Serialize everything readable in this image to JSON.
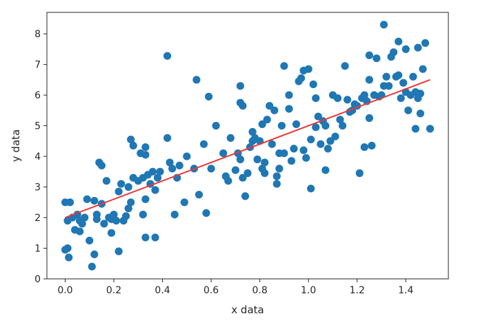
{
  "chart_data": {
    "type": "scatter",
    "title": "",
    "xlabel": "x data",
    "ylabel": "y data",
    "xlim": [
      -0.075,
      1.575
    ],
    "ylim": [
      0,
      8.7
    ],
    "xticks": [
      0.0,
      0.2,
      0.4,
      0.6,
      0.8,
      1.0,
      1.2,
      1.4
    ],
    "xtick_labels": [
      "0.0",
      "0.2",
      "0.4",
      "0.6",
      "0.8",
      "1.0",
      "1.2",
      "1.4"
    ],
    "yticks": [
      0,
      1,
      2,
      3,
      4,
      5,
      6,
      7,
      8
    ],
    "ytick_labels": [
      "0",
      "1",
      "2",
      "3",
      "4",
      "5",
      "6",
      "7",
      "8"
    ],
    "grid": false,
    "legend": "none",
    "colors": {
      "points": "#1f77b4",
      "fit_line": "#e8393a",
      "axes": "#262626"
    },
    "points": [
      [
        0.0,
        2.5
      ],
      [
        0.01,
        1.9
      ],
      [
        0.01,
        1.0
      ],
      [
        0.0,
        0.95
      ],
      [
        0.015,
        0.7
      ],
      [
        0.02,
        2.5
      ],
      [
        0.03,
        2.0
      ],
      [
        0.04,
        1.6
      ],
      [
        0.05,
        2.1
      ],
      [
        0.06,
        1.9
      ],
      [
        0.06,
        1.55
      ],
      [
        0.07,
        1.8
      ],
      [
        0.08,
        2.0
      ],
      [
        0.09,
        2.6
      ],
      [
        0.1,
        1.25
      ],
      [
        0.11,
        0.4
      ],
      [
        0.12,
        0.8
      ],
      [
        0.12,
        2.55
      ],
      [
        0.13,
        2.1
      ],
      [
        0.13,
        1.95
      ],
      [
        0.14,
        3.8
      ],
      [
        0.15,
        3.7
      ],
      [
        0.15,
        2.45
      ],
      [
        0.16,
        1.8
      ],
      [
        0.17,
        3.2
      ],
      [
        0.18,
        2.0
      ],
      [
        0.19,
        1.95
      ],
      [
        0.19,
        1.5
      ],
      [
        0.2,
        2.1
      ],
      [
        0.21,
        1.9
      ],
      [
        0.22,
        2.85
      ],
      [
        0.22,
        0.9
      ],
      [
        0.23,
        3.1
      ],
      [
        0.24,
        1.9
      ],
      [
        0.25,
        2.05
      ],
      [
        0.26,
        3.0
      ],
      [
        0.27,
        2.5
      ],
      [
        0.26,
        2.3
      ],
      [
        0.27,
        4.55
      ],
      [
        0.28,
        4.35
      ],
      [
        0.28,
        3.3
      ],
      [
        0.3,
        3.2
      ],
      [
        0.31,
        4.1
      ],
      [
        0.32,
        3.3
      ],
      [
        0.33,
        4.3
      ],
      [
        0.33,
        4.05
      ],
      [
        0.33,
        2.6
      ],
      [
        0.32,
        2.1
      ],
      [
        0.33,
        1.35
      ],
      [
        0.34,
        3.4
      ],
      [
        0.35,
        3.1
      ],
      [
        0.36,
        3.5
      ],
      [
        0.37,
        2.9
      ],
      [
        0.37,
        1.35
      ],
      [
        0.38,
        3.3
      ],
      [
        0.39,
        3.5
      ],
      [
        0.42,
        7.28
      ],
      [
        0.42,
        4.6
      ],
      [
        0.43,
        3.8
      ],
      [
        0.44,
        3.6
      ],
      [
        0.45,
        2.1
      ],
      [
        0.46,
        3.3
      ],
      [
        0.47,
        3.7
      ],
      [
        0.49,
        2.5
      ],
      [
        0.5,
        4.0
      ],
      [
        0.53,
        3.6
      ],
      [
        0.54,
        6.5
      ],
      [
        0.55,
        2.75
      ],
      [
        0.57,
        4.4
      ],
      [
        0.58,
        2.15
      ],
      [
        0.59,
        5.95
      ],
      [
        0.6,
        3.6
      ],
      [
        0.62,
        5.0
      ],
      [
        0.65,
        4.1
      ],
      [
        0.66,
        3.35
      ],
      [
        0.67,
        3.2
      ],
      [
        0.68,
        4.6
      ],
      [
        0.7,
        3.55
      ],
      [
        0.71,
        4.1
      ],
      [
        0.72,
        3.9
      ],
      [
        0.72,
        5.75
      ],
      [
        0.72,
        6.3
      ],
      [
        0.73,
        5.65
      ],
      [
        0.73,
        3.3
      ],
      [
        0.74,
        2.7
      ],
      [
        0.75,
        3.45
      ],
      [
        0.76,
        4.3
      ],
      [
        0.77,
        4.5
      ],
      [
        0.77,
        4.8
      ],
      [
        0.78,
        4.6
      ],
      [
        0.79,
        3.9
      ],
      [
        0.8,
        4.5
      ],
      [
        0.81,
        3.6
      ],
      [
        0.81,
        5.05
      ],
      [
        0.82,
        3.8
      ],
      [
        0.82,
        3.45
      ],
      [
        0.83,
        5.2
      ],
      [
        0.84,
        5.65
      ],
      [
        0.85,
        4.4
      ],
      [
        0.86,
        5.5
      ],
      [
        0.87,
        3.35
      ],
      [
        0.87,
        3.1
      ],
      [
        0.88,
        4.1
      ],
      [
        0.88,
        3.6
      ],
      [
        0.89,
        5.0
      ],
      [
        0.9,
        6.95
      ],
      [
        0.9,
        4.1
      ],
      [
        0.92,
        5.55
      ],
      [
        0.92,
        6.0
      ],
      [
        0.93,
        3.85
      ],
      [
        0.94,
        4.25
      ],
      [
        0.95,
        5.05
      ],
      [
        0.96,
        6.45
      ],
      [
        0.97,
        6.55
      ],
      [
        0.98,
        4.2
      ],
      [
        0.98,
        6.8
      ],
      [
        0.99,
        3.95
      ],
      [
        1.0,
        6.85
      ],
      [
        1.01,
        2.95
      ],
      [
        1.01,
        4.55
      ],
      [
        1.02,
        6.35
      ],
      [
        1.03,
        5.9
      ],
      [
        1.03,
        4.95
      ],
      [
        1.04,
        5.3
      ],
      [
        1.05,
        4.4
      ],
      [
        1.06,
        5.15
      ],
      [
        1.07,
        5.0
      ],
      [
        1.07,
        3.55
      ],
      [
        1.08,
        4.25
      ],
      [
        1.09,
        4.5
      ],
      [
        1.1,
        6.0
      ],
      [
        1.11,
        4.65
      ],
      [
        1.12,
        5.9
      ],
      [
        1.13,
        5.2
      ],
      [
        1.14,
        5.0
      ],
      [
        1.15,
        6.95
      ],
      [
        1.16,
        5.85
      ],
      [
        1.17,
        5.45
      ],
      [
        1.18,
        5.5
      ],
      [
        1.19,
        5.7
      ],
      [
        1.2,
        5.65
      ],
      [
        1.21,
        3.45
      ],
      [
        1.22,
        5.9
      ],
      [
        1.23,
        6.0
      ],
      [
        1.23,
        4.3
      ],
      [
        1.24,
        5.8
      ],
      [
        1.25,
        5.25
      ],
      [
        1.25,
        6.5
      ],
      [
        1.25,
        7.3
      ],
      [
        1.26,
        4.35
      ],
      [
        1.27,
        6.0
      ],
      [
        1.28,
        7.2
      ],
      [
        1.29,
        5.95
      ],
      [
        1.3,
        6.0
      ],
      [
        1.31,
        8.3
      ],
      [
        1.31,
        6.3
      ],
      [
        1.32,
        6.6
      ],
      [
        1.33,
        6.3
      ],
      [
        1.34,
        7.25
      ],
      [
        1.35,
        7.4
      ],
      [
        1.36,
        6.6
      ],
      [
        1.37,
        6.65
      ],
      [
        1.37,
        7.75
      ],
      [
        1.38,
        5.9
      ],
      [
        1.39,
        6.4
      ],
      [
        1.4,
        6.1
      ],
      [
        1.4,
        7.5
      ],
      [
        1.41,
        5.5
      ],
      [
        1.42,
        6.0
      ],
      [
        1.43,
        6.6
      ],
      [
        1.44,
        6.1
      ],
      [
        1.44,
        4.9
      ],
      [
        1.45,
        5.9
      ],
      [
        1.45,
        7.55
      ],
      [
        1.46,
        6.05
      ],
      [
        1.46,
        5.4
      ],
      [
        1.47,
        6.85
      ],
      [
        1.48,
        7.7
      ],
      [
        1.5,
        4.9
      ]
    ],
    "fit_line": {
      "x": [
        0.0,
        1.5
      ],
      "y": [
        2.0,
        6.5
      ]
    }
  }
}
